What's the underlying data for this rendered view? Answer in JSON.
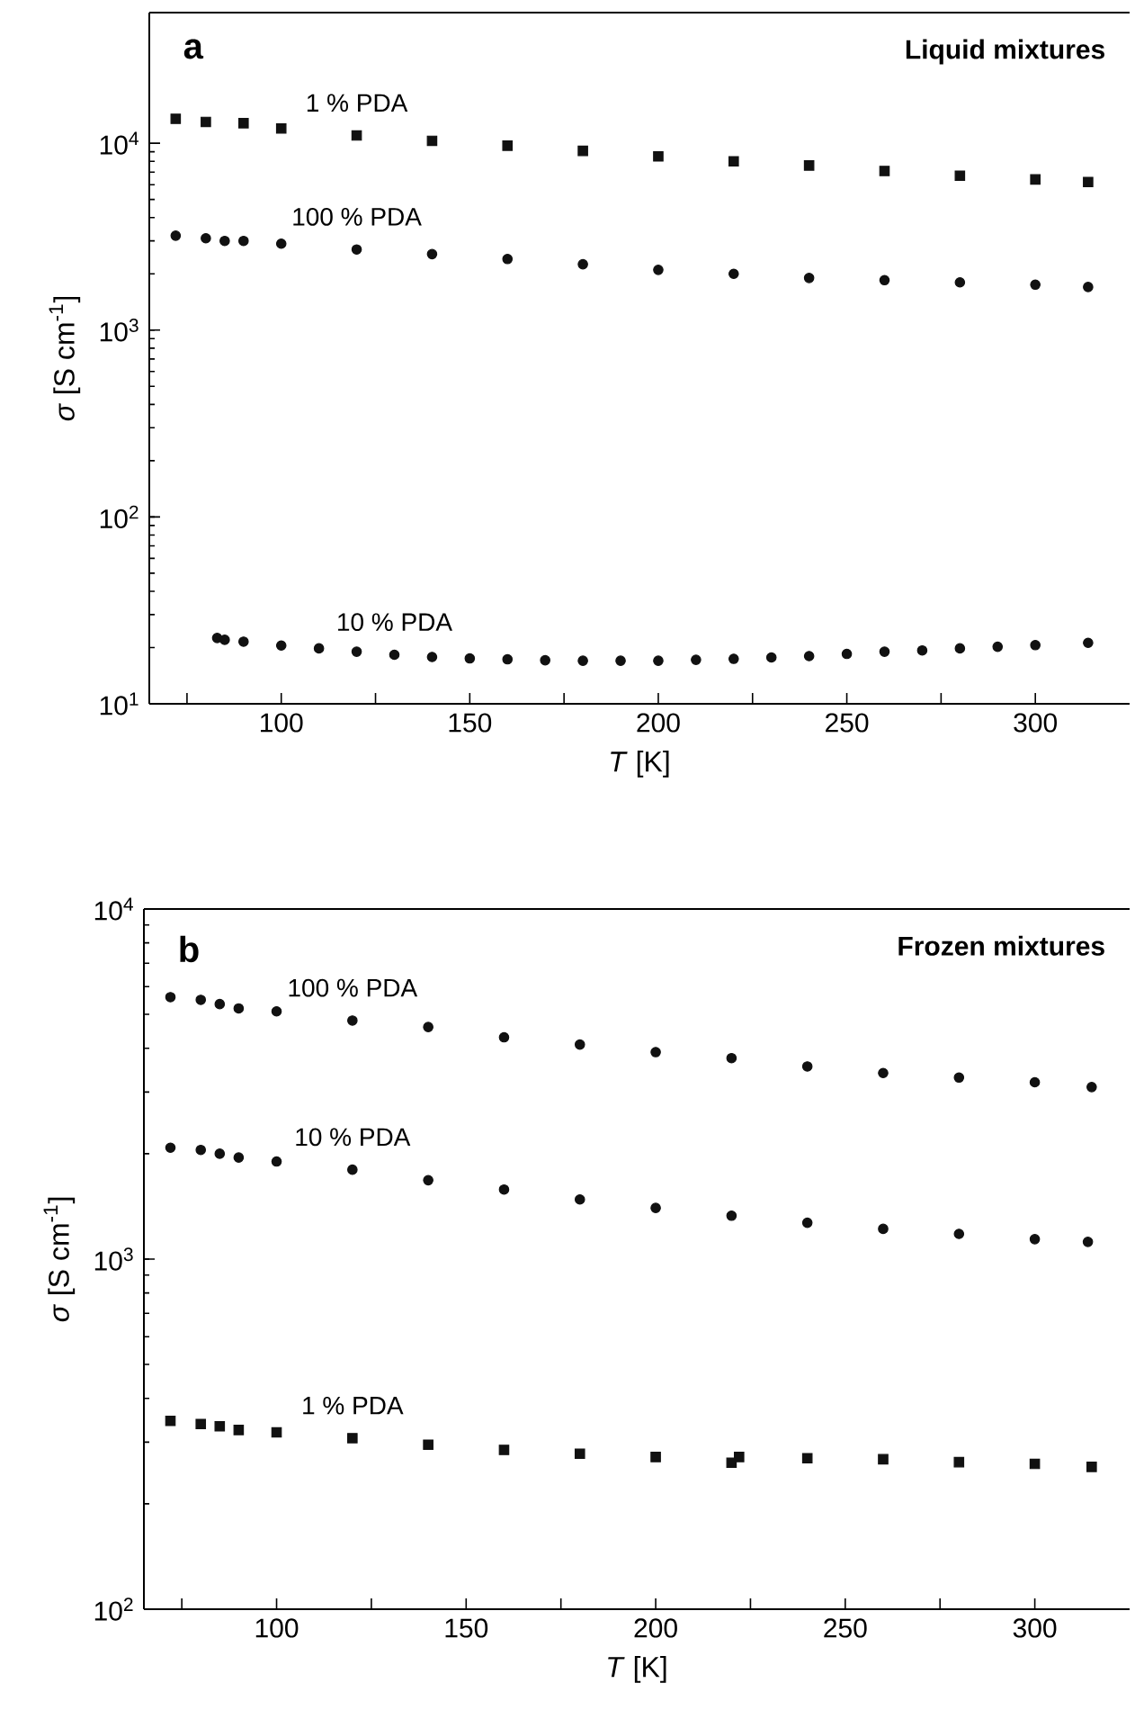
{
  "chart_data": [
    {
      "type": "scatter",
      "title": "Liquid mixtures",
      "annotations": [
        "a"
      ],
      "xlabel": "*T* [K]",
      "ylabel": "*σ* [S cm$^{-1}$]",
      "log": "y",
      "xlim": [
        65,
        325
      ],
      "ylim": [
        10,
        50000
      ],
      "xticks": [
        {
          "value": 75,
          "label": null
        },
        100,
        {
          "value": 125,
          "label": null
        },
        150,
        {
          "value": 175,
          "label": null
        },
        200,
        {
          "value": 225,
          "label": null
        },
        250,
        {
          "value": 275,
          "label": null
        },
        300
      ],
      "yticks": [
        {
          "value": 10,
          "label": "10$^{1}$"
        },
        {
          "value": 100,
          "label": "10$^{2}$"
        },
        {
          "value": 1000,
          "label": "10$^{3}$"
        },
        {
          "value": 10000,
          "label": "10$^{4}$"
        }
      ],
      "series": [
        {
          "name": "1 % PDA",
          "color": "#111111",
          "marker": "square",
          "x": [
            72,
            80,
            90,
            100,
            120,
            140,
            160,
            180,
            200,
            220,
            240,
            260,
            280,
            300,
            314
          ],
          "values": [
            13500,
            13000,
            12800,
            12000,
            11000,
            10300,
            9700,
            9100,
            8500,
            8000,
            7600,
            7100,
            6700,
            6400,
            6200
          ]
        },
        {
          "name": "100 % PDA",
          "color": "#111111",
          "marker": "circle",
          "x": [
            72,
            80,
            85,
            90,
            100,
            120,
            140,
            160,
            180,
            200,
            220,
            240,
            260,
            280,
            300,
            314
          ],
          "values": [
            3200,
            3100,
            3000,
            3000,
            2900,
            2700,
            2550,
            2400,
            2250,
            2100,
            2000,
            1900,
            1850,
            1800,
            1750,
            1700
          ]
        },
        {
          "name": "10 % PDA",
          "color": "#111111",
          "marker": "circle",
          "x": [
            83,
            85,
            90,
            100,
            110,
            120,
            130,
            140,
            150,
            160,
            170,
            180,
            190,
            200,
            210,
            220,
            230,
            240,
            250,
            260,
            270,
            280,
            290,
            300,
            314
          ],
          "values": [
            22.5,
            22,
            21.5,
            20.5,
            19.8,
            19,
            18.3,
            17.8,
            17.5,
            17.3,
            17.1,
            17,
            17,
            17,
            17.2,
            17.4,
            17.7,
            18,
            18.5,
            19,
            19.3,
            19.8,
            20.2,
            20.6,
            21.2
          ]
        }
      ]
    },
    {
      "type": "scatter",
      "title": "Frozen mixtures",
      "annotations": [
        "b"
      ],
      "xlabel": "*T* [K]",
      "ylabel": "*σ* [S cm$^{-1}$]",
      "log": "y",
      "xlim": [
        65,
        325
      ],
      "ylim": [
        100,
        10000
      ],
      "xticks": [
        {
          "value": 75,
          "label": null
        },
        100,
        {
          "value": 125,
          "label": null
        },
        150,
        {
          "value": 175,
          "label": null
        },
        200,
        {
          "value": 225,
          "label": null
        },
        250,
        {
          "value": 275,
          "label": null
        },
        300
      ],
      "yticks": [
        {
          "value": 100,
          "label": "10$^{2}$"
        },
        {
          "value": 1000,
          "label": "10$^{3}$"
        },
        {
          "value": 10000,
          "label": "10$^{4}$"
        }
      ],
      "series": [
        {
          "name": "100 % PDA",
          "color": "#111111",
          "marker": "circle",
          "x": [
            72,
            80,
            85,
            90,
            100,
            120,
            140,
            160,
            180,
            200,
            220,
            240,
            260,
            280,
            300,
            315
          ],
          "values": [
            5600,
            5500,
            5350,
            5200,
            5100,
            4800,
            4600,
            4300,
            4100,
            3900,
            3750,
            3550,
            3400,
            3300,
            3200,
            3100
          ]
        },
        {
          "name": "10 % PDA",
          "color": "#111111",
          "marker": "circle",
          "x": [
            72,
            80,
            85,
            90,
            100,
            120,
            140,
            160,
            180,
            200,
            220,
            240,
            260,
            280,
            300,
            314
          ],
          "values": [
            2080,
            2050,
            2000,
            1950,
            1900,
            1800,
            1680,
            1580,
            1480,
            1400,
            1330,
            1270,
            1220,
            1180,
            1140,
            1120
          ]
        },
        {
          "name": "1 % PDA",
          "color": "#111111",
          "marker": "square",
          "x": [
            72,
            80,
            85,
            90,
            100,
            120,
            140,
            160,
            180,
            200,
            220,
            222,
            240,
            260,
            280,
            300,
            315
          ],
          "values": [
            345,
            338,
            333,
            325,
            320,
            308,
            295,
            285,
            278,
            272,
            262,
            272,
            270,
            268,
            263,
            260,
            255
          ]
        }
      ]
    }
  ]
}
